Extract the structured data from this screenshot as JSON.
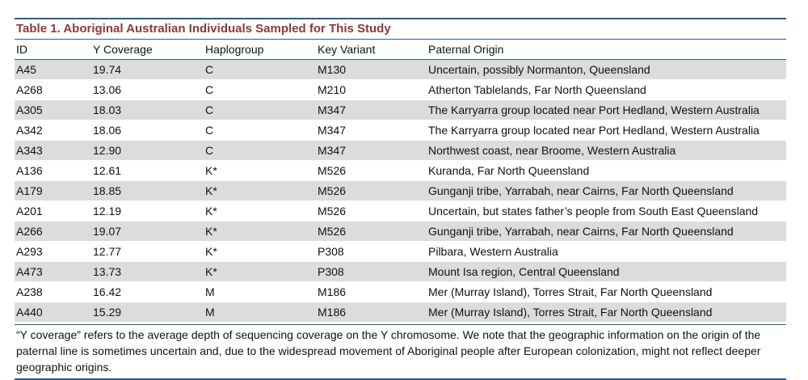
{
  "table": {
    "caption": "Table 1.  Aboriginal Australian Individuals Sampled for This Study",
    "headers": [
      "ID",
      "Y Coverage",
      "Haplogroup",
      "Key Variant",
      "Paternal Origin"
    ],
    "rows": [
      [
        "A45",
        "19.74",
        "C",
        "M130",
        "Uncertain, possibly Normanton, Queensland"
      ],
      [
        "A268",
        "13.06",
        "C",
        "M210",
        "Atherton Tablelands, Far North Queensland"
      ],
      [
        "A305",
        "18.03",
        "C",
        "M347",
        "The Karryarra group located near Port Hedland, Western Australia"
      ],
      [
        "A342",
        "18.06",
        "C",
        "M347",
        "The Karryarra group located near Port Hedland, Western Australia"
      ],
      [
        "A343",
        "12.90",
        "C",
        "M347",
        "Northwest coast, near Broome, Western Australia"
      ],
      [
        "A136",
        "12.61",
        "K*",
        "M526",
        "Kuranda, Far North Queensland"
      ],
      [
        "A179",
        "18.85",
        "K*",
        "M526",
        "Gunganji tribe, Yarrabah, near Cairns, Far North Queensland"
      ],
      [
        "A201",
        "12.19",
        "K*",
        "M526",
        "Uncertain, but states father’s people from South East Queensland"
      ],
      [
        "A266",
        "19.07",
        "K*",
        "M526",
        "Gunganji tribe, Yarrabah, near Cairns, Far North Queensland"
      ],
      [
        "A293",
        "12.77",
        "K*",
        "P308",
        "Pilbara, Western Australia"
      ],
      [
        "A473",
        "13.73",
        "K*",
        "P308",
        "Mount Isa region, Central Queensland"
      ],
      [
        "A238",
        "16.42",
        "M",
        "M186",
        "Mer (Murray Island), Torres Strait, Far North Queensland"
      ],
      [
        "A440",
        "15.29",
        "M",
        "M186",
        "Mer (Murray Island), Torres Strait, Far North Queensland"
      ]
    ],
    "footnote": "“Y coverage” refers to the average depth of sequencing coverage on the Y chromosome. We note that the geographic information on the origin of the paternal line is sometimes uncertain and, due to the widespread movement of Aboriginal people after European colonization, might not reflect deeper geographic origins."
  },
  "colors": {
    "rule": "#2f5d8c",
    "title": "#8b3a3a",
    "stripe": "#dcdcdc"
  }
}
